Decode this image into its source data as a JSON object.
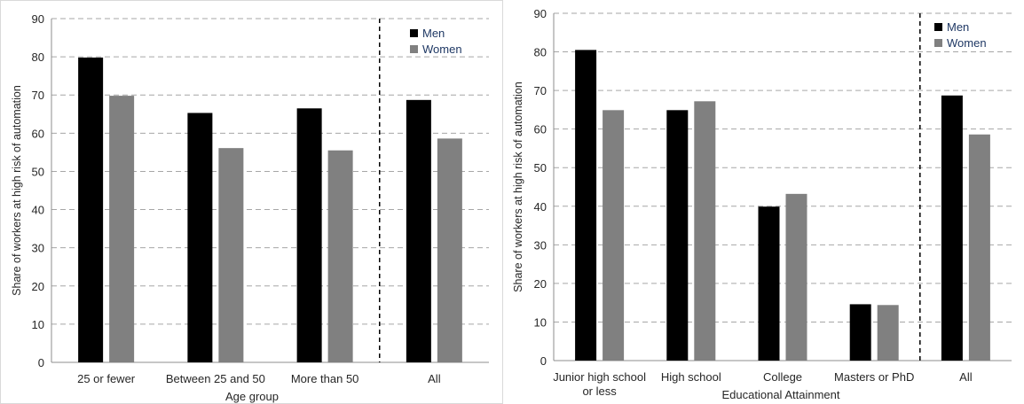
{
  "chart_data": [
    {
      "type": "bar",
      "categories": [
        "25 or fewer",
        "Between 25 and 50",
        "More than 50",
        "All"
      ],
      "series": [
        {
          "name": "Men",
          "values": [
            79.8,
            65.3,
            66.5,
            68.7
          ],
          "color": "#000000"
        },
        {
          "name": "Women",
          "values": [
            69.8,
            56.1,
            55.5,
            58.6
          ],
          "color": "#808080"
        }
      ],
      "xlabel": "Age group",
      "ylabel": "Share of workers at high risk of automation",
      "ylim": [
        0,
        90
      ],
      "yticks": [
        "0",
        "10",
        "20",
        "30",
        "40",
        "50",
        "60",
        "70",
        "80",
        "90"
      ],
      "grid": true,
      "legend": "top-right",
      "separator_before_last": true
    },
    {
      "type": "bar",
      "categories": [
        [
          "Junior high school",
          "or less"
        ],
        [
          "High school"
        ],
        [
          "College"
        ],
        [
          "Masters or PhD"
        ],
        [
          "All"
        ]
      ],
      "series": [
        {
          "name": "Men",
          "values": [
            80.5,
            64.9,
            39.9,
            14.6,
            68.7
          ],
          "color": "#000000"
        },
        {
          "name": "Women",
          "values": [
            64.9,
            67.2,
            43.2,
            14.4,
            58.6
          ],
          "color": "#808080"
        }
      ],
      "xlabel": "Educational Attainment",
      "ylabel": "Share of workers at high risk of automation",
      "ylim": [
        0,
        90
      ],
      "yticks": [
        "0",
        "10",
        "20",
        "30",
        "40",
        "50",
        "60",
        "70",
        "80",
        "90"
      ],
      "grid": true,
      "legend": "top-right",
      "separator_before_last": true
    }
  ]
}
